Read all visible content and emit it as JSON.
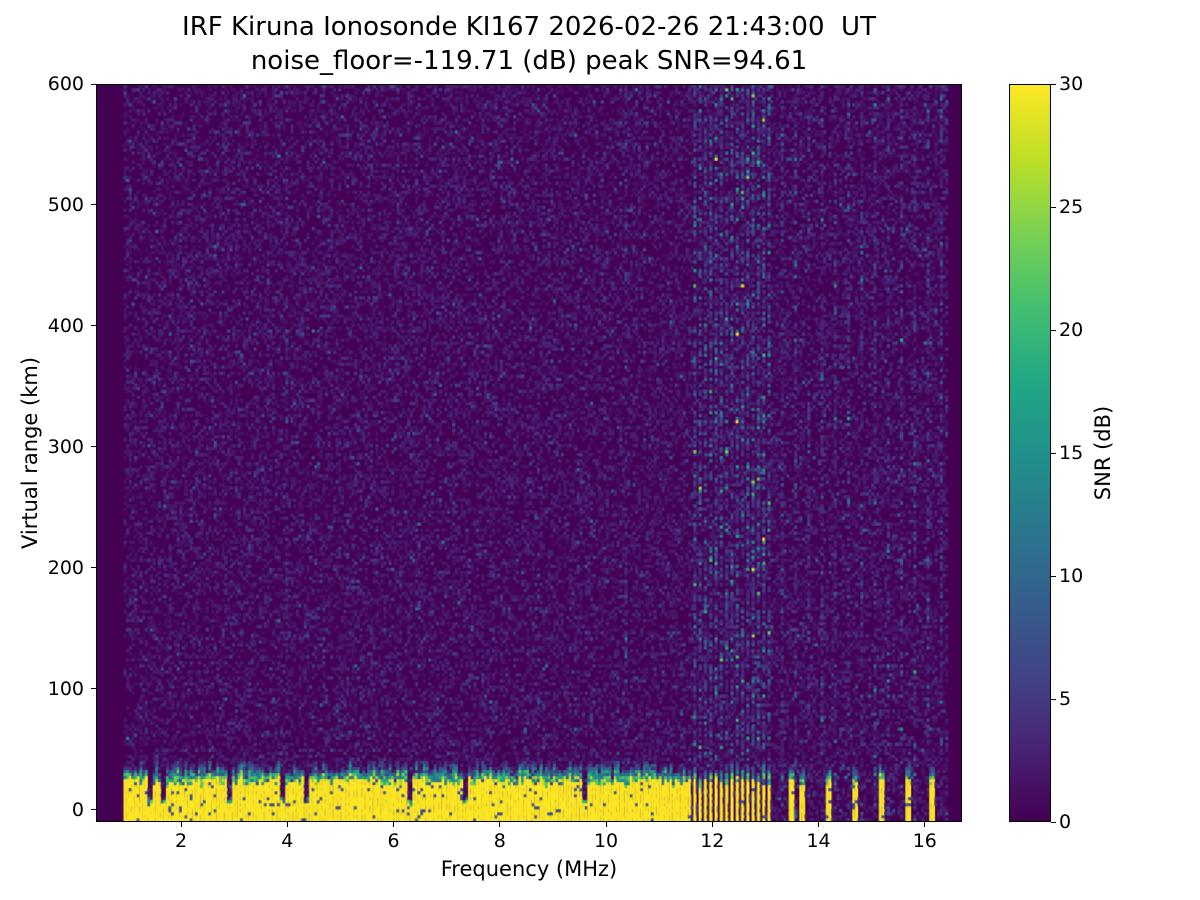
{
  "title": "IRF Kiruna Ionosonde KI167 2026-02-26 21:43:00  UT",
  "subtitle": "noise_floor=-119.71 (dB) peak SNR=94.61",
  "station": "IRF Kiruna Ionosonde KI167",
  "timestamp_ut": "2026-02-26 21:43:00",
  "noise_floor_db": -119.71,
  "peak_snr_db": 94.61,
  "chart_data": {
    "type": "heatmap",
    "title": "IRF Kiruna Ionosonde KI167 2026-02-26 21:43:00  UT",
    "subtitle": "noise_floor=-119.71 (dB) peak SNR=94.61",
    "xlabel": "Frequency (MHz)",
    "ylabel": "Virtual range (km)",
    "colorbar_label": "SNR (dB)",
    "x_range": [
      0.4,
      16.7
    ],
    "y_range": [
      -10,
      600
    ],
    "clim": [
      0,
      30
    ],
    "x_ticks": [
      2,
      4,
      6,
      8,
      10,
      12,
      14,
      16
    ],
    "y_ticks": [
      0,
      100,
      200,
      300,
      400,
      500,
      600
    ],
    "colorbar_ticks": [
      0,
      5,
      10,
      15,
      20,
      25,
      30
    ],
    "colormap": "viridis",
    "colormap_stops": [
      "#440154",
      "#482475",
      "#414487",
      "#355f8d",
      "#2a788e",
      "#21918c",
      "#22a884",
      "#44bf70",
      "#7ad151",
      "#bddf26",
      "#fde725"
    ],
    "freq_start": 0.9,
    "freq_end": 16.4,
    "freq_step": 0.05,
    "range_cell_km": 2.5,
    "noise_mean_db": 1.3,
    "ground_band": {
      "description": "Strong ground/direct-signal return band at 0-35 km virtual range, saturated at 30 dB SNR, continuous below 11.6 MHz, intermittent discrete bars above",
      "solid_top_km": 21,
      "ragged_top_km": 36,
      "continuous_until_mhz": 11.6,
      "notch_freqs_mhz": [
        1.375,
        1.625,
        2.875,
        3.875,
        4.325,
        6.275,
        7.325,
        9.575
      ],
      "notch_half_width_mhz": 0.05,
      "cluster_bars_mhz": [
        11.65,
        11.75,
        11.85,
        11.95,
        12.05,
        12.15,
        12.25,
        12.35,
        12.45,
        12.55,
        12.65,
        12.75,
        12.85,
        12.95,
        13.05
      ],
      "cluster_bar_half_width_mhz": 0.026,
      "isolated_bars_mhz": [
        13.47,
        13.67,
        14.17,
        14.67,
        15.17,
        15.67,
        16.12
      ],
      "isolated_bar_half_width_mhz": 0.04
    },
    "rfi_stripes": {
      "description": "Vertical interference stripes of enhanced noise spanning the full range axis",
      "cluster_mhz": [
        11.65,
        11.75,
        11.85,
        11.95,
        12.05,
        12.15,
        12.25,
        12.35,
        12.45,
        12.55,
        12.65,
        12.75,
        12.85,
        12.95,
        13.05
      ],
      "cluster_strength": 3.2,
      "spaced_mhz": [
        13.3,
        13.55,
        13.8,
        14.05,
        14.3,
        14.55,
        14.8,
        15.05,
        15.3,
        15.55,
        15.8,
        16.05,
        16.3
      ],
      "spaced_strength": 2.0,
      "weak_mhz": [
        3.95,
        10.35
      ],
      "weak_strength": 1.7
    }
  }
}
